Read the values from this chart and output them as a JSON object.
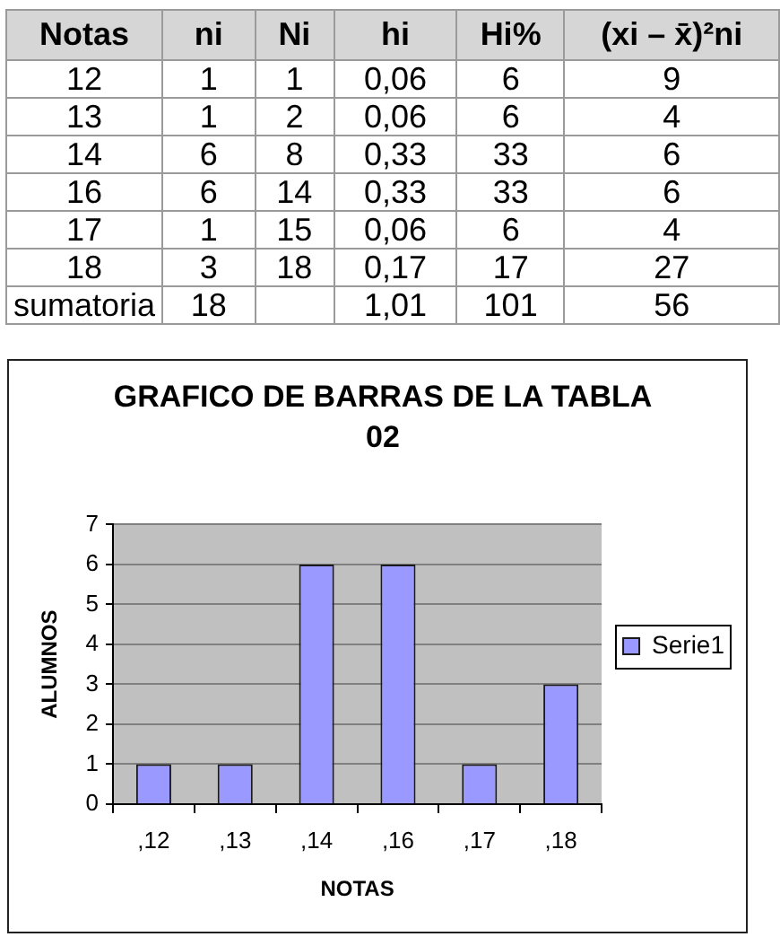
{
  "chart_data": [
    {
      "type": "other",
      "categories": [
        "Notas",
        "ni",
        "Ni",
        "hi",
        "Hi%",
        "(xi – x̄)²ni"
      ],
      "cell_labels": [
        [
          "12",
          "1",
          "1",
          "0,06",
          "6",
          "9"
        ],
        [
          "13",
          "1",
          "2",
          "0,06",
          "6",
          "4"
        ],
        [
          "14",
          "6",
          "8",
          "0,33",
          "33",
          "6"
        ],
        [
          "16",
          "6",
          "14",
          "0,33",
          "33",
          "6"
        ],
        [
          "17",
          "1",
          "15",
          "0,06",
          "6",
          "4"
        ],
        [
          "18",
          "3",
          "18",
          "0,17",
          "17",
          "27"
        ],
        [
          "sumatoria",
          "18",
          null,
          "1,01",
          "101",
          "56"
        ]
      ]
    },
    {
      "type": "bar",
      "title": "GRAFICO DE BARRAS DE LA TABLA 02",
      "xlabel": "NOTAS",
      "ylabel": "ALUMNOS",
      "categories": [
        ",12",
        ",13",
        ",14",
        ",16",
        ",17",
        ",18"
      ],
      "series": [
        {
          "name": "Serie1",
          "color": "#9999ff",
          "values": [
            1,
            1,
            6,
            6,
            1,
            3
          ]
        }
      ],
      "ylim": [
        0,
        7
      ],
      "yticks": [
        0,
        1,
        2,
        3,
        4,
        5,
        6,
        7
      ],
      "grid": "y",
      "legend": "right"
    }
  ]
}
